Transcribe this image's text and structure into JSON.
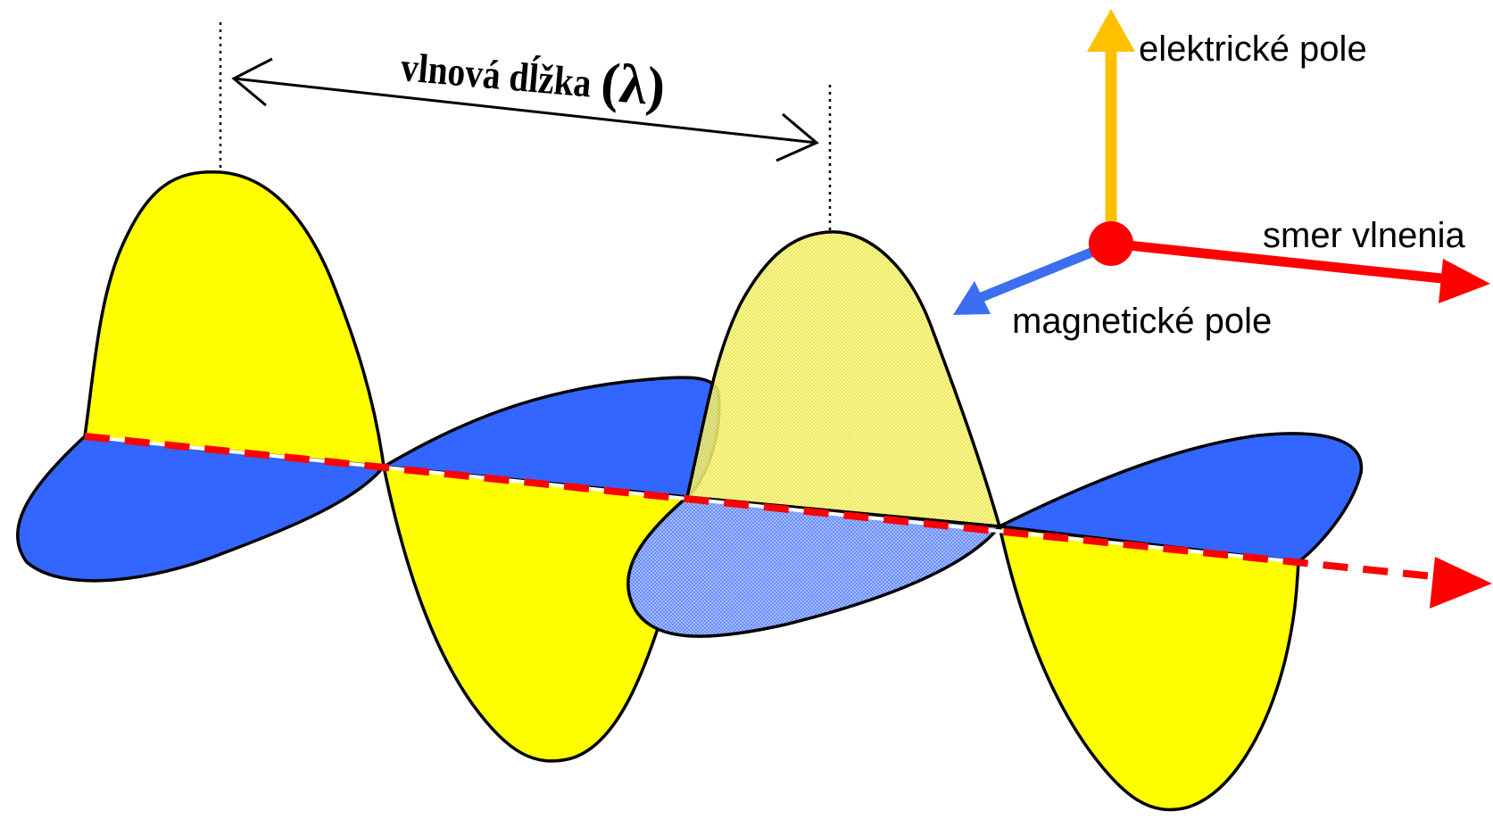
{
  "labels": {
    "wavelength_text": "vlnová dĺžka",
    "wavelength_symbol": "(λ)",
    "electric_field": "elektrické pole",
    "propagation_direction": "smer vlnenia",
    "magnetic_field": "magnetické pole"
  },
  "colors": {
    "electric_wave": "#ffff00",
    "magnetic_wave": "#3366ff",
    "electric_axis": "#ffc000",
    "magnetic_axis": "#3b6ef0",
    "propagation_axis": "#ff0000",
    "outline": "#000000"
  }
}
